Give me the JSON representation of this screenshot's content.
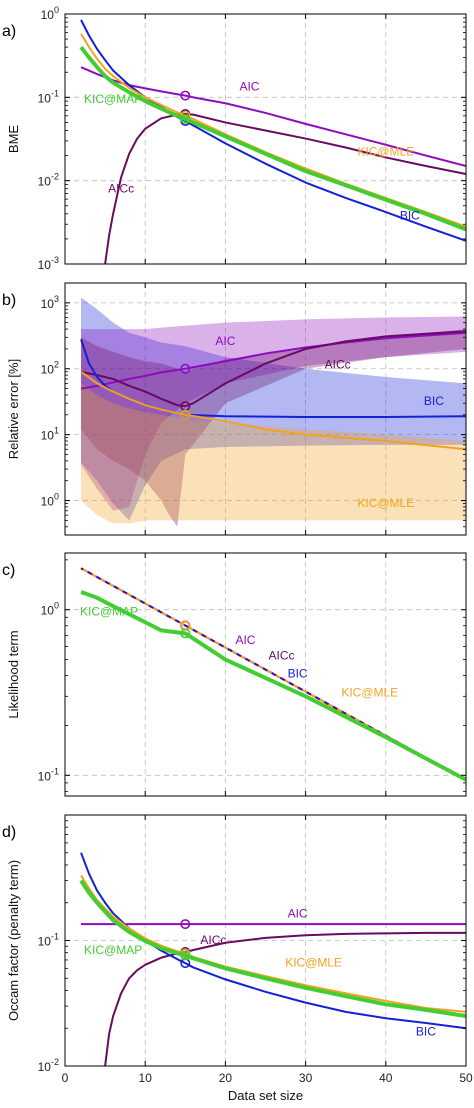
{
  "figure": {
    "xlabel": "Data set size",
    "x_ticks": [
      "0",
      "10",
      "20",
      "30",
      "40",
      "50"
    ]
  },
  "colors": {
    "AIC": "#8e0bbf",
    "AICc": "#6a0a62",
    "BIC": "#1421d6",
    "KIC@MLE": "#f2a21f",
    "KIC@MAP": "#44cc33"
  },
  "chart_data": [
    {
      "type": "line",
      "panel_label": "a)",
      "ylabel": "BME",
      "xlim": [
        0,
        50
      ],
      "ylim": [
        0.001,
        1
      ],
      "yscale": "log",
      "y_ticks": [
        {
          "base": "10",
          "exp": "-3",
          "value": 0.001
        },
        {
          "base": "10",
          "exp": "-2",
          "value": 0.01
        },
        {
          "base": "10",
          "exp": "-1",
          "value": 0.1
        },
        {
          "base": "10",
          "exp": "0",
          "value": 1
        }
      ],
      "grid": true,
      "marker_x": 15,
      "series": [
        {
          "name": "AIC",
          "x": [
            2,
            4,
            6,
            8,
            10,
            12,
            14,
            15,
            16,
            20,
            25,
            30,
            35,
            40,
            45,
            50
          ],
          "y": [
            0.23,
            0.19,
            0.16,
            0.14,
            0.128,
            0.118,
            0.109,
            0.105,
            0.1,
            0.085,
            0.065,
            0.048,
            0.036,
            0.027,
            0.02,
            0.015
          ]
        },
        {
          "name": "AICc",
          "x": [
            5,
            5.5,
            6,
            7,
            8,
            9,
            10,
            12,
            14,
            15,
            16,
            20,
            25,
            30,
            35,
            40,
            45,
            50
          ],
          "y": [
            0.001,
            0.0022,
            0.004,
            0.011,
            0.021,
            0.032,
            0.042,
            0.056,
            0.062,
            0.063,
            0.062,
            0.05,
            0.04,
            0.032,
            0.025,
            0.019,
            0.015,
            0.012
          ]
        },
        {
          "name": "BIC",
          "x": [
            2,
            3,
            4,
            5,
            6,
            8,
            10,
            12,
            14,
            15,
            16,
            20,
            25,
            30,
            35,
            40,
            45,
            50
          ],
          "y": [
            0.85,
            0.55,
            0.38,
            0.28,
            0.21,
            0.14,
            0.1,
            0.077,
            0.058,
            0.052,
            0.046,
            0.028,
            0.016,
            0.0095,
            0.0062,
            0.0042,
            0.0028,
            0.0019
          ]
        },
        {
          "name": "KIC@MLE",
          "x": [
            2,
            3,
            4,
            5,
            6,
            8,
            10,
            12,
            14,
            15,
            16,
            20,
            25,
            30,
            35,
            40,
            45,
            50
          ],
          "y": [
            0.58,
            0.4,
            0.29,
            0.22,
            0.18,
            0.13,
            0.1,
            0.081,
            0.066,
            0.06,
            0.055,
            0.036,
            0.022,
            0.014,
            0.0092,
            0.0062,
            0.0042,
            0.0028
          ]
        },
        {
          "name": "KIC@MAP",
          "x": [
            2,
            3,
            4,
            5,
            6,
            8,
            10,
            12,
            14,
            15,
            16,
            20,
            25,
            30,
            35,
            40,
            45,
            50
          ],
          "y": [
            0.4,
            0.3,
            0.23,
            0.18,
            0.15,
            0.115,
            0.09,
            0.073,
            0.06,
            0.055,
            0.05,
            0.034,
            0.021,
            0.013,
            0.0088,
            0.0059,
            0.004,
            0.0026
          ]
        }
      ],
      "labels": [
        {
          "text": "AIC",
          "series": "AIC",
          "x": 23,
          "y": 0.12
        },
        {
          "text": "KIC@MAP",
          "series": "KIC@MAP",
          "x": 6,
          "y": 0.085
        },
        {
          "text": "KIC@MLE",
          "series": "KIC@MLE",
          "x": 40,
          "y": 0.02
        },
        {
          "text": "AICc",
          "series": "AICc",
          "x": 7,
          "y": 0.0072
        },
        {
          "text": "BIC",
          "series": "BIC",
          "x": 43,
          "y": 0.0034
        }
      ]
    },
    {
      "type": "line",
      "panel_label": "b)",
      "ylabel": "Relative error [%]",
      "xlim": [
        0,
        50
      ],
      "ylim": [
        0.3,
        2000
      ],
      "yscale": "log",
      "y_ticks": [
        {
          "base": "10",
          "exp": "0",
          "value": 1
        },
        {
          "base": "10",
          "exp": "1",
          "value": 10
        },
        {
          "base": "10",
          "exp": "2",
          "value": 100
        },
        {
          "base": "10",
          "exp": "3",
          "value": 1000
        }
      ],
      "grid": true,
      "marker_x": 15,
      "bands": [
        {
          "series": "BIC",
          "x": [
            2,
            4,
            6,
            8,
            10,
            12,
            15,
            20,
            30,
            40,
            50
          ],
          "low": [
            3.8,
            2,
            0.9,
            0.5,
            1.7,
            4,
            6,
            6.5,
            6.8,
            7,
            7
          ],
          "high": [
            1200,
            800,
            500,
            350,
            300,
            250,
            220,
            150,
            100,
            75,
            60
          ]
        },
        {
          "series": "AIC",
          "x": [
            2,
            4,
            6,
            8,
            10,
            12,
            15,
            20,
            30,
            40,
            50
          ],
          "low": [
            3.5,
            1.5,
            0.7,
            0.8,
            5,
            15,
            30,
            60,
            110,
            150,
            180
          ],
          "high": [
            400,
            400,
            400,
            400,
            400,
            420,
            450,
            500,
            560,
            600,
            620
          ]
        },
        {
          "series": "AICc",
          "x": [
            2,
            4,
            6,
            8,
            10,
            12,
            13,
            14,
            15,
            20,
            30,
            40,
            50
          ],
          "low": [
            12,
            6,
            4,
            3,
            2,
            1,
            0.6,
            0.4,
            5,
            30,
            100,
            150,
            200
          ],
          "high": [
            300,
            220,
            180,
            150,
            130,
            120,
            110,
            100,
            90,
            140,
            200,
            300,
            400
          ]
        },
        {
          "series": "KIC@MLE",
          "x": [
            2,
            4,
            6,
            8,
            10,
            12,
            15,
            20,
            30,
            40,
            50
          ],
          "low": [
            1,
            0.6,
            0.45,
            0.45,
            0.5,
            0.5,
            0.5,
            0.5,
            0.5,
            0.5,
            0.5
          ],
          "high": [
            60,
            40,
            30,
            25,
            22,
            20,
            17,
            15,
            12,
            10,
            8
          ]
        }
      ],
      "series": [
        {
          "name": "AIC",
          "x": [
            2,
            4,
            6,
            8,
            10,
            12,
            15,
            20,
            25,
            30,
            35,
            40,
            45,
            50
          ],
          "y": [
            50,
            55,
            62,
            70,
            78,
            88,
            100,
            130,
            170,
            210,
            250,
            290,
            320,
            350
          ]
        },
        {
          "name": "AICc",
          "x": [
            2,
            4,
            6,
            8,
            10,
            12,
            14,
            15,
            16,
            20,
            25,
            30,
            35,
            40,
            45,
            50
          ],
          "y": [
            90,
            80,
            70,
            55,
            45,
            35,
            28,
            27,
            30,
            60,
            120,
            200,
            260,
            310,
            340,
            370
          ]
        },
        {
          "name": "BIC",
          "x": [
            2,
            3,
            4,
            5,
            6,
            8,
            10,
            12,
            15,
            20,
            30,
            40,
            50
          ],
          "y": [
            280,
            120,
            75,
            55,
            45,
            35,
            28,
            24,
            20,
            19,
            18.5,
            18.5,
            19
          ]
        },
        {
          "name": "KIC@MLE",
          "x": [
            2,
            4,
            6,
            8,
            10,
            12,
            15,
            20,
            25,
            30,
            40,
            50
          ],
          "y": [
            90,
            60,
            45,
            35,
            28,
            24,
            20,
            16,
            12,
            10,
            8,
            6
          ]
        }
      ],
      "labels": [
        {
          "text": "AIC",
          "series": "AIC",
          "x": 20,
          "y": 230
        },
        {
          "text": "AICc",
          "series": "AICc",
          "x": 34,
          "y": 100
        },
        {
          "text": "BIC",
          "series": "BIC",
          "x": 46,
          "y": 28
        },
        {
          "text": "KIC@MLE",
          "series": "KIC@MLE",
          "x": 40,
          "y": 0.8
        }
      ]
    },
    {
      "type": "line",
      "panel_label": "c)",
      "ylabel": "Likelihood term",
      "xlim": [
        0,
        50
      ],
      "ylim": [
        0.075,
        2.2
      ],
      "yscale": "log",
      "y_ticks": [
        {
          "base": "10",
          "exp": "-1",
          "value": 0.1
        },
        {
          "base": "10",
          "exp": "0",
          "value": 1
        }
      ],
      "grid": true,
      "marker_x": 15,
      "series": [
        {
          "name": "AIC",
          "x": [
            2,
            50
          ],
          "y": [
            1.78,
            0.094
          ],
          "dashed": true
        },
        {
          "name": "AICc",
          "x": [
            2,
            50
          ],
          "y": [
            1.78,
            0.094
          ],
          "dashed": true
        },
        {
          "name": "BIC",
          "x": [
            2,
            50
          ],
          "y": [
            1.78,
            0.094
          ],
          "dashed": true
        },
        {
          "name": "KIC@MLE",
          "x": [
            2,
            50
          ],
          "y": [
            1.78,
            0.094
          ],
          "dashed": true
        },
        {
          "name": "KIC@MAP",
          "x": [
            2,
            4,
            6,
            8,
            10,
            12,
            15,
            20,
            30,
            40,
            50
          ],
          "y": [
            1.28,
            1.18,
            1.05,
            0.94,
            0.84,
            0.75,
            0.72,
            0.5,
            0.3,
            0.17,
            0.094
          ]
        }
      ],
      "labels": [
        {
          "text": "KIC@MAP",
          "series": "KIC@MAP",
          "x": 5.5,
          "y": 0.92
        },
        {
          "text": "AIC",
          "series": "AIC",
          "x": 22.5,
          "y": 0.62
        },
        {
          "text": "AICc",
          "series": "AICc",
          "x": 27,
          "y": 0.5
        },
        {
          "text": "BIC",
          "series": "BIC",
          "x": 29,
          "y": 0.39
        },
        {
          "text": "KIC@MLE",
          "series": "KIC@MLE",
          "x": 38,
          "y": 0.3
        }
      ]
    },
    {
      "type": "line",
      "panel_label": "d)",
      "ylabel": "Occam factor (penalty term)",
      "xlim": [
        0,
        50
      ],
      "ylim": [
        0.01,
        1
      ],
      "yscale": "log",
      "y_ticks": [
        {
          "base": "10",
          "exp": "-2",
          "value": 0.01
        },
        {
          "base": "10",
          "exp": "-1",
          "value": 0.1
        }
      ],
      "grid": true,
      "marker_x": 15,
      "series": [
        {
          "name": "AIC",
          "x": [
            2,
            50
          ],
          "y": [
            0.135,
            0.135
          ]
        },
        {
          "name": "AICc",
          "x": [
            5,
            5.5,
            6,
            7,
            8,
            9,
            10,
            12,
            14,
            15,
            16,
            20,
            25,
            30,
            35,
            40,
            45,
            50
          ],
          "y": [
            0.01,
            0.018,
            0.025,
            0.038,
            0.05,
            0.058,
            0.064,
            0.073,
            0.079,
            0.081,
            0.084,
            0.096,
            0.105,
            0.11,
            0.113,
            0.114,
            0.115,
            0.115
          ]
        },
        {
          "name": "BIC",
          "x": [
            2,
            3,
            4,
            5,
            6,
            8,
            10,
            12,
            14,
            15,
            16,
            20,
            25,
            30,
            35,
            40,
            45,
            50
          ],
          "y": [
            0.5,
            0.34,
            0.25,
            0.2,
            0.165,
            0.125,
            0.1,
            0.083,
            0.071,
            0.066,
            0.061,
            0.049,
            0.039,
            0.032,
            0.027,
            0.024,
            0.022,
            0.02
          ]
        },
        {
          "name": "KIC@MLE",
          "x": [
            2,
            3,
            4,
            5,
            6,
            8,
            10,
            12,
            14,
            15,
            16,
            20,
            25,
            30,
            35,
            40,
            45,
            50
          ],
          "y": [
            0.33,
            0.26,
            0.21,
            0.18,
            0.155,
            0.125,
            0.104,
            0.091,
            0.082,
            0.079,
            0.074,
            0.062,
            0.052,
            0.044,
            0.038,
            0.033,
            0.029,
            0.027
          ]
        },
        {
          "name": "KIC@MAP",
          "x": [
            2,
            3,
            4,
            5,
            6,
            8,
            10,
            12,
            14,
            15,
            16,
            20,
            25,
            30,
            35,
            40,
            45,
            50
          ],
          "y": [
            0.3,
            0.24,
            0.2,
            0.17,
            0.145,
            0.117,
            0.099,
            0.087,
            0.079,
            0.076,
            0.072,
            0.06,
            0.05,
            0.042,
            0.036,
            0.031,
            0.028,
            0.025
          ]
        }
      ],
      "labels": [
        {
          "text": "AIC",
          "series": "AIC",
          "x": 29,
          "y": 0.152
        },
        {
          "text": "AICc",
          "series": "AICc",
          "x": 18.5,
          "y": 0.094
        },
        {
          "text": "KIC@MAP",
          "series": "KIC@MAP",
          "x": 6,
          "y": 0.078
        },
        {
          "text": "KIC@MLE",
          "series": "KIC@MLE",
          "x": 31,
          "y": 0.062
        },
        {
          "text": "BIC",
          "series": "BIC",
          "x": 45,
          "y": 0.0175
        }
      ]
    }
  ]
}
